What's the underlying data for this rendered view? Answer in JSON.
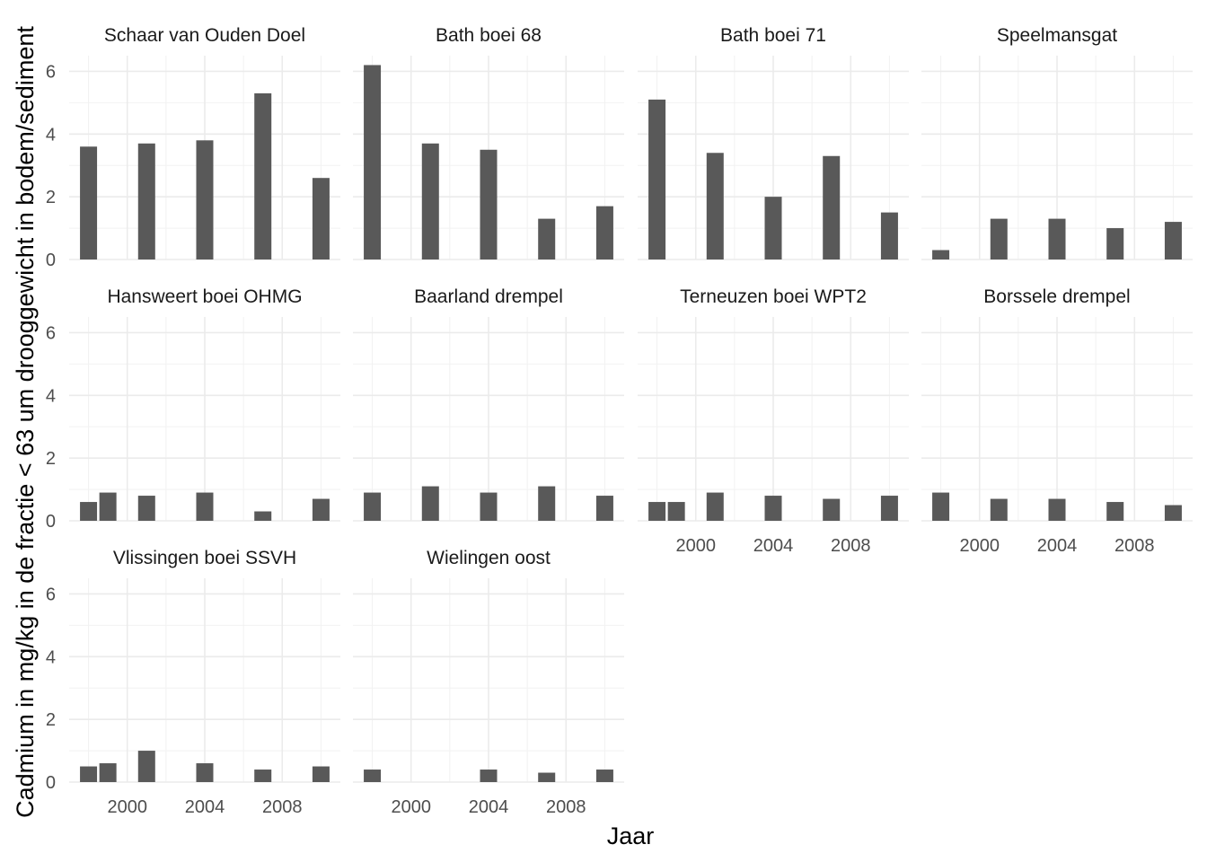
{
  "chart_data": {
    "type": "bar",
    "xlabel": "Jaar",
    "ylabel": "Cadmium in mg/kg in de fractie < 63 um drooggewicht in bodem/sediment",
    "xlim": [
      1997,
      2011
    ],
    "ylim": [
      0,
      6.5
    ],
    "x_ticks": [
      2000,
      2004,
      2008
    ],
    "y_ticks": [
      0,
      2,
      4,
      6
    ],
    "bar_color": "#595959",
    "grid": true,
    "facets": [
      {
        "title": "Schaar van Ouden Doel",
        "bars": [
          [
            1998,
            3.6
          ],
          [
            2001,
            3.7
          ],
          [
            2004,
            3.8
          ],
          [
            2007,
            5.3
          ],
          [
            2010,
            2.6
          ]
        ]
      },
      {
        "title": "Bath boei 68",
        "bars": [
          [
            1998,
            6.2
          ],
          [
            2001,
            3.7
          ],
          [
            2004,
            3.5
          ],
          [
            2007,
            1.3
          ],
          [
            2010,
            1.7
          ]
        ]
      },
      {
        "title": "Bath boei 71",
        "bars": [
          [
            1998,
            5.1
          ],
          [
            2001,
            3.4
          ],
          [
            2004,
            2.0
          ],
          [
            2007,
            3.3
          ],
          [
            2010,
            1.5
          ]
        ]
      },
      {
        "title": "Speelmansgat",
        "bars": [
          [
            1998,
            0.3
          ],
          [
            2001,
            1.3
          ],
          [
            2004,
            1.3
          ],
          [
            2007,
            1.0
          ],
          [
            2010,
            1.2
          ]
        ]
      },
      {
        "title": "Hansweert boei OHMG",
        "bars": [
          [
            1998,
            0.6
          ],
          [
            1999,
            0.9
          ],
          [
            2001,
            0.8
          ],
          [
            2004,
            0.9
          ],
          [
            2007,
            0.3
          ],
          [
            2010,
            0.7
          ]
        ]
      },
      {
        "title": "Baarland drempel",
        "bars": [
          [
            1998,
            0.9
          ],
          [
            2001,
            1.1
          ],
          [
            2004,
            0.9
          ],
          [
            2007,
            1.1
          ],
          [
            2010,
            0.8
          ]
        ]
      },
      {
        "title": "Terneuzen boei WPT2",
        "bars": [
          [
            1998,
            0.6
          ],
          [
            1999,
            0.6
          ],
          [
            2001,
            0.9
          ],
          [
            2004,
            0.8
          ],
          [
            2007,
            0.7
          ],
          [
            2010,
            0.8
          ]
        ]
      },
      {
        "title": "Borssele drempel",
        "bars": [
          [
            1998,
            0.9
          ],
          [
            2001,
            0.7
          ],
          [
            2004,
            0.7
          ],
          [
            2007,
            0.6
          ],
          [
            2010,
            0.5
          ]
        ]
      },
      {
        "title": "Vlissingen boei SSVH",
        "bars": [
          [
            1998,
            0.5
          ],
          [
            1999,
            0.6
          ],
          [
            2001,
            1.0
          ],
          [
            2004,
            0.6
          ],
          [
            2007,
            0.4
          ],
          [
            2010,
            0.5
          ]
        ]
      },
      {
        "title": "Wielingen oost",
        "bars": [
          [
            1998,
            0.4
          ],
          [
            2004,
            0.4
          ],
          [
            2007,
            0.3
          ],
          [
            2010,
            0.4
          ]
        ]
      }
    ]
  }
}
